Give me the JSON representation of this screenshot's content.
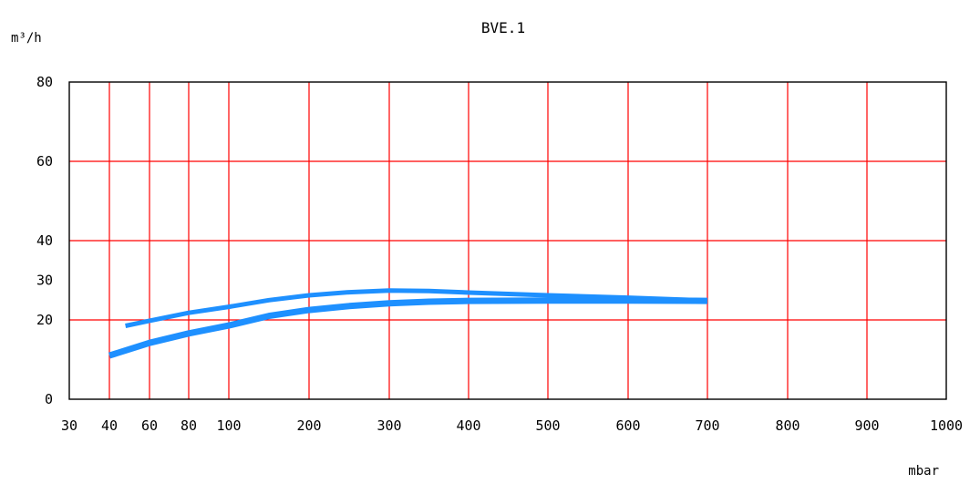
{
  "chart_data": {
    "type": "line",
    "title": "BVE.1",
    "ylabel": "m³/h",
    "xlabel": "mbar",
    "x_ticks": [
      30,
      40,
      60,
      80,
      100,
      200,
      300,
      400,
      500,
      600,
      700,
      800,
      900,
      1000
    ],
    "y_ticks": [
      0,
      20,
      30,
      40,
      60,
      80
    ],
    "ylim": [
      0,
      80
    ],
    "xlim": [
      30,
      1000
    ],
    "grid": true,
    "grid_color": "#ff0000",
    "series_color": "#1e90ff",
    "series": [
      {
        "x": [
          48,
          60,
          80,
          100,
          150,
          200,
          250,
          300,
          350,
          400,
          500,
          600,
          700
        ],
        "y": [
          18.5,
          19.8,
          21.8,
          23.3,
          25.0,
          26.2,
          27.0,
          27.4,
          27.3,
          26.9,
          26.2,
          25.6,
          24.9
        ]
      },
      {
        "x": [
          40,
          60,
          80,
          100,
          150,
          200,
          250,
          300,
          350,
          400,
          500,
          600,
          700
        ],
        "y": [
          11.0,
          14.2,
          16.6,
          18.6,
          21.0,
          22.5,
          23.5,
          24.2,
          24.6,
          24.8,
          24.9,
          24.9,
          24.8
        ]
      }
    ]
  }
}
